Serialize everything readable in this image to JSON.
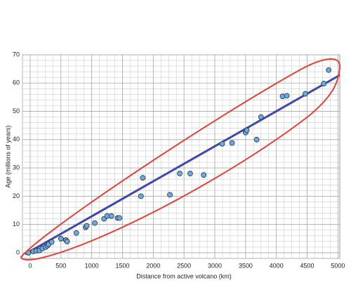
{
  "chart_data": {
    "type": "scatter",
    "xlabel": "Distance from active volcano (km)",
    "ylabel": "Age (millions of years)",
    "xlim": [
      -125,
      5030
    ],
    "ylim": [
      -2,
      70
    ],
    "xticks": [
      0,
      500,
      1000,
      1500,
      2000,
      2500,
      3000,
      3500,
      4000,
      4500,
      5000
    ],
    "yticks": [
      0,
      10,
      20,
      30,
      40,
      50,
      60,
      70
    ],
    "grid": true,
    "minor_grid": [
      125,
      2
    ],
    "points": {
      "color": "#6fa8dc",
      "x": [
        -30,
        50,
        100,
        150,
        200,
        250,
        280,
        300,
        350,
        500,
        580,
        600,
        750,
        900,
        920,
        1050,
        1200,
        1250,
        1320,
        1420,
        1450,
        1800,
        1830,
        2270,
        2430,
        2600,
        2820,
        3120,
        3280,
        3500,
        3520,
        3680,
        3750,
        4100,
        4170,
        4470,
        4770,
        4850
      ],
      "y": [
        0,
        0.5,
        0.7,
        0.8,
        1.5,
        2,
        2.5,
        3,
        3.8,
        5,
        4.5,
        4,
        7,
        9,
        9.5,
        10.5,
        12,
        13,
        13,
        12.3,
        12.3,
        20,
        26.5,
        20.5,
        28,
        28,
        27.5,
        38.5,
        38.8,
        42.5,
        43.3,
        40,
        48,
        55.3,
        55.5,
        56.2,
        59.8,
        64.6
      ]
    },
    "trend": {
      "color": "#3f48a8",
      "x": [
        -80,
        5030
      ],
      "y": [
        -0.5,
        62.8
      ]
    },
    "outline_color": "#e0413a"
  }
}
